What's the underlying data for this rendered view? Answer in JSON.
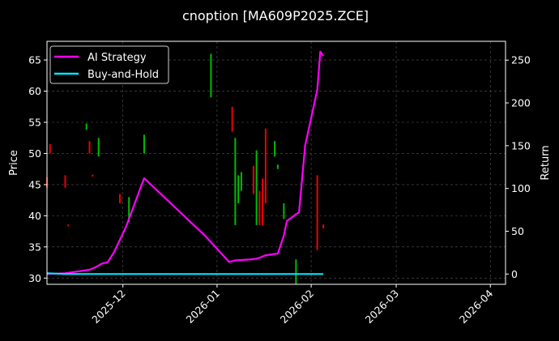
{
  "chart_data": {
    "type": "line",
    "title": "cnoption [MA609P2025.ZCE]",
    "xlabel": "",
    "ylabel": "Price",
    "y2label": "Return",
    "x_start": "2025-11-06",
    "xlim": [
      "2025-11-06",
      "2026-04-06"
    ],
    "ylim": [
      29,
      68
    ],
    "y2lim": [
      -12,
      272
    ],
    "xticks": [
      "2025-12",
      "2026-01",
      "2026-02",
      "2026-03",
      "2026-04"
    ],
    "yticks": [
      30,
      35,
      40,
      45,
      50,
      55,
      60,
      65
    ],
    "y2ticks": [
      0,
      50,
      100,
      150,
      200,
      250
    ],
    "grid": true,
    "legend_position": "top-left",
    "colors": {
      "background": "#000000",
      "ai_strategy": "#ff00ff",
      "buy_and_hold": "#00e5ff",
      "candle_up": "#00bb00",
      "candle_down": "#ee0000",
      "grid": "#555555"
    },
    "series": [
      {
        "name": "AI Strategy",
        "axis": "right",
        "x": [
          "2025-11-06",
          "2025-11-12",
          "2025-11-16",
          "2025-11-20",
          "2025-11-22",
          "2025-11-24",
          "2025-11-26",
          "2025-11-28",
          "2025-12-02",
          "2025-12-08",
          "2025-12-28",
          "2026-01-05",
          "2026-01-07",
          "2026-01-12",
          "2026-01-14",
          "2026-01-15",
          "2026-01-17",
          "2026-01-21",
          "2026-01-23",
          "2026-01-24",
          "2026-01-26",
          "2026-01-27",
          "2026-01-28",
          "2026-01-30",
          "2026-02-03",
          "2026-02-04",
          "2026-02-05"
        ],
        "values": [
          0,
          1,
          3,
          5,
          8,
          12,
          14,
          25,
          55,
          112,
          45,
          14,
          16,
          17,
          18,
          19,
          22,
          24,
          45,
          62,
          67,
          70,
          72,
          150,
          215,
          260,
          255
        ]
      },
      {
        "name": "Buy-and-Hold",
        "axis": "right",
        "x": [
          "2025-11-06",
          "2025-11-12",
          "2026-02-05"
        ],
        "values": [
          1,
          0,
          0
        ]
      }
    ],
    "candles": [
      {
        "x": "2025-11-06",
        "low": 44.5,
        "high": 46.2,
        "dir": "down"
      },
      {
        "x": "2025-11-07",
        "low": 50.0,
        "high": 51.5,
        "dir": "down"
      },
      {
        "x": "2025-11-12",
        "low": 44.5,
        "high": 46.5,
        "dir": "down"
      },
      {
        "x": "2025-11-13",
        "low": 38.3,
        "high": 38.6,
        "dir": "down"
      },
      {
        "x": "2025-11-19",
        "low": 53.8,
        "high": 54.8,
        "dir": "up"
      },
      {
        "x": "2025-11-20",
        "low": 50.0,
        "high": 52.0,
        "dir": "down"
      },
      {
        "x": "2025-11-21",
        "low": 46.3,
        "high": 46.6,
        "dir": "down"
      },
      {
        "x": "2025-11-23",
        "low": 49.5,
        "high": 52.5,
        "dir": "up"
      },
      {
        "x": "2025-11-30",
        "low": 42.0,
        "high": 43.5,
        "dir": "down"
      },
      {
        "x": "2025-12-03",
        "low": 39.0,
        "high": 43.0,
        "dir": "up"
      },
      {
        "x": "2025-12-08",
        "low": 50.0,
        "high": 53.0,
        "dir": "up"
      },
      {
        "x": "2025-12-30",
        "low": 59.0,
        "high": 66.0,
        "dir": "up"
      },
      {
        "x": "2026-01-06",
        "low": 53.5,
        "high": 57.5,
        "dir": "down"
      },
      {
        "x": "2026-01-07",
        "low": 38.5,
        "high": 52.5,
        "dir": "up"
      },
      {
        "x": "2026-01-08",
        "low": 42.0,
        "high": 46.5,
        "dir": "up"
      },
      {
        "x": "2026-01-09",
        "low": 44.0,
        "high": 47.0,
        "dir": "up"
      },
      {
        "x": "2026-01-13",
        "low": 43.5,
        "high": 48.0,
        "dir": "down"
      },
      {
        "x": "2026-01-14",
        "low": 38.5,
        "high": 50.5,
        "dir": "up"
      },
      {
        "x": "2026-01-15",
        "low": 38.5,
        "high": 44.0,
        "dir": "down"
      },
      {
        "x": "2026-01-16",
        "low": 38.5,
        "high": 46.0,
        "dir": "down"
      },
      {
        "x": "2026-01-17",
        "low": 42.0,
        "high": 54.0,
        "dir": "down"
      },
      {
        "x": "2026-01-20",
        "low": 49.5,
        "high": 52.0,
        "dir": "up"
      },
      {
        "x": "2026-01-21",
        "low": 47.5,
        "high": 48.2,
        "dir": "up"
      },
      {
        "x": "2026-01-23",
        "low": 39.5,
        "high": 42.0,
        "dir": "up"
      },
      {
        "x": "2026-01-27",
        "low": 29.0,
        "high": 33.0,
        "dir": "up"
      },
      {
        "x": "2026-02-03",
        "low": 34.5,
        "high": 46.5,
        "dir": "down"
      },
      {
        "x": "2026-02-05",
        "low": 38.0,
        "high": 38.6,
        "dir": "down"
      }
    ]
  }
}
